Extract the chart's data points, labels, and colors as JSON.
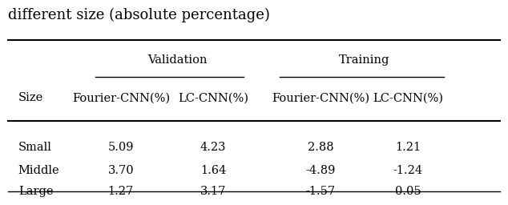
{
  "title": "different size (absolute percentage)",
  "group1_label": "Validation",
  "group2_label": "Training",
  "col1": "Fourier-CNN(%)",
  "col2": "LC-CNN(%)",
  "col3": "Fourier-CNN(%)",
  "col4": "LC-CNN(%)",
  "size_header": "Size",
  "rows": [
    [
      "Small",
      "5.09",
      "4.23",
      "2.88",
      "1.21"
    ],
    [
      "Middle",
      "3.70",
      "1.64",
      "-4.89",
      "-1.24"
    ],
    [
      "Large",
      "1.27",
      "3.17",
      "-1.57",
      "0.05"
    ]
  ],
  "bg_color": "#ffffff",
  "text_color": "#000000",
  "font_size": 10.5,
  "title_font_size": 13
}
